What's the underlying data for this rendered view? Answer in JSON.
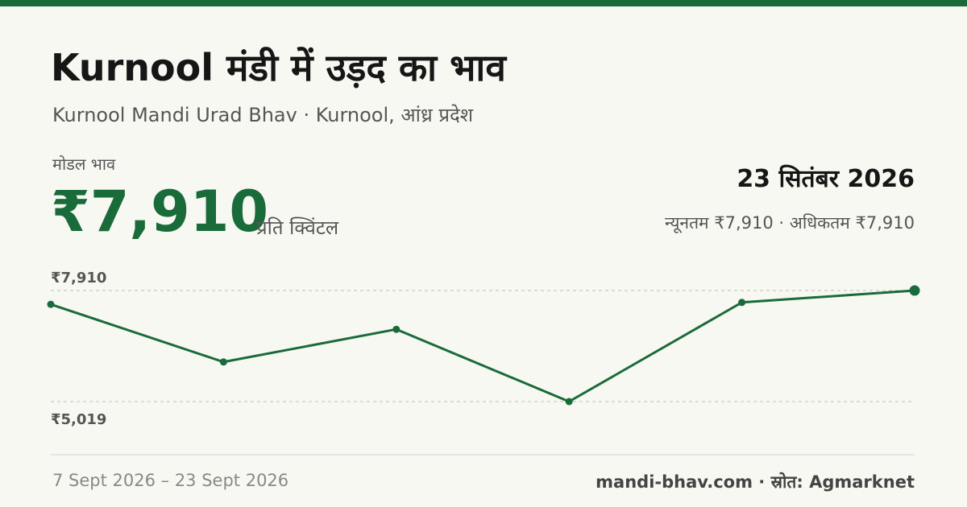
{
  "header": {
    "title": "Kurnool मंडी में उड़द का भाव",
    "subtitle": "Kurnool Mandi Urad Bhav · Kurnool, आंध्र प्रदेश"
  },
  "price": {
    "label": "मोडल भाव",
    "value": "₹7,910",
    "unit": "प्रति क्विंटल",
    "date": "23 सितंबर 2026",
    "range": "न्यूनतम ₹7,910 · अधिकतम ₹7,910"
  },
  "chart_data": {
    "type": "line",
    "categories": [
      null,
      null,
      null,
      null,
      null,
      null
    ],
    "series": [
      {
        "color": "#1a6b3a",
        "values": [
          7550,
          6050,
          6900,
          5019,
          7600,
          7910
        ]
      }
    ],
    "ylim": [
      5019,
      7910
    ],
    "yticks": [
      {
        "value": 7910,
        "label": "₹7,910"
      },
      {
        "value": 5019,
        "label": "₹5,019"
      }
    ],
    "grid": true
  },
  "footer": {
    "date_range": "7 Sept 2026 – 23 Sept 2026",
    "source": "mandi-bhav.com · स्रोत: Agmarknet"
  }
}
